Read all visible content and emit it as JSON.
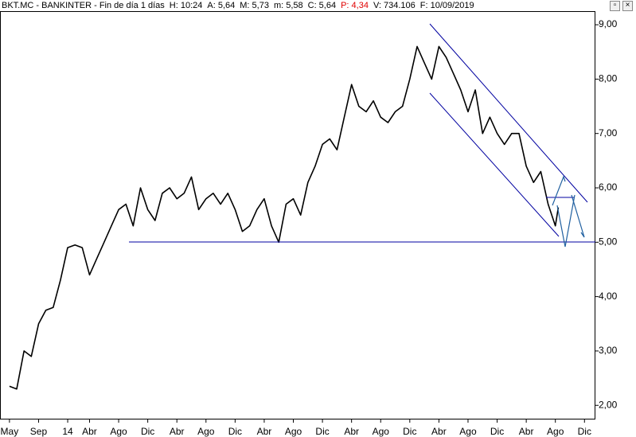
{
  "chart_data": {
    "type": "line",
    "info": [
      "BKT.MC - BANKINTER - Fin de día 1 días",
      "H: 10:24",
      "A: 5,64",
      "M: 5,73",
      "m: 5,58",
      "C: 5,64",
      "P: 4,34",
      "V: 734.106",
      "F: 10/09/2019"
    ],
    "color": "#000000",
    "x": [
      0,
      1,
      2,
      3,
      4,
      5,
      6,
      7,
      8,
      9,
      10,
      11,
      12,
      13,
      14,
      15,
      16,
      17,
      18,
      19,
      20,
      21,
      22,
      23,
      24,
      25,
      26,
      27,
      28,
      29,
      30,
      31,
      32,
      33,
      34,
      35,
      36,
      37,
      38,
      39,
      40,
      41,
      42,
      43,
      44,
      45,
      46,
      47,
      48,
      49,
      50,
      51,
      52,
      53,
      54,
      55,
      56,
      57,
      58,
      59,
      60,
      61,
      62,
      63,
      64,
      65,
      66,
      67,
      68,
      69,
      70,
      71,
      72,
      73,
      74,
      75,
      75.4
    ],
    "values": [
      2.35,
      2.3,
      3.0,
      2.9,
      3.5,
      3.75,
      3.8,
      4.3,
      4.9,
      4.95,
      4.9,
      4.4,
      4.7,
      5.0,
      5.3,
      5.6,
      5.7,
      5.3,
      6.0,
      5.6,
      5.4,
      5.9,
      6.0,
      5.8,
      5.9,
      6.2,
      5.6,
      5.8,
      5.9,
      5.7,
      5.9,
      5.6,
      5.2,
      5.3,
      5.6,
      5.8,
      5.3,
      5.0,
      5.7,
      5.8,
      5.5,
      6.1,
      6.4,
      6.8,
      6.9,
      6.7,
      7.3,
      7.9,
      7.5,
      7.4,
      7.6,
      7.3,
      7.2,
      7.4,
      7.5,
      8.0,
      8.6,
      8.3,
      8.0,
      8.6,
      8.4,
      8.1,
      7.8,
      7.4,
      7.8,
      7.0,
      7.3,
      7.0,
      6.8,
      7.0,
      7.0,
      6.4,
      6.1,
      6.3,
      5.7,
      5.3,
      5.64
    ],
    "xlim": [
      -1.3,
      80.5
    ],
    "xticks": [
      {
        "value": 0,
        "label": "May"
      },
      {
        "value": 4,
        "label": "Sep"
      },
      {
        "value": 8,
        "label": "14"
      },
      {
        "value": 11,
        "label": "Abr"
      },
      {
        "value": 15,
        "label": "Ago"
      },
      {
        "value": 19,
        "label": "Dic"
      },
      {
        "value": 23,
        "label": "Abr"
      },
      {
        "value": 27,
        "label": "Ago"
      },
      {
        "value": 31,
        "label": "Dic"
      },
      {
        "value": 35,
        "label": "Abr"
      },
      {
        "value": 39,
        "label": "Ago"
      },
      {
        "value": 43,
        "label": "Dic"
      },
      {
        "value": 47,
        "label": "Abr"
      },
      {
        "value": 51,
        "label": "Ago"
      },
      {
        "value": 55,
        "label": "Dic"
      },
      {
        "value": 59,
        "label": "Abr"
      },
      {
        "value": 63,
        "label": "Ago"
      },
      {
        "value": 67,
        "label": "Dic"
      },
      {
        "value": 71,
        "label": "Abr"
      },
      {
        "value": 75,
        "label": "Ago"
      },
      {
        "value": 79,
        "label": "Dic"
      }
    ],
    "ylim": [
      1.74,
      9.25
    ],
    "yticks": [
      {
        "value": 9,
        "label": "9,00"
      },
      {
        "value": 8,
        "label": "8,00"
      },
      {
        "value": 7,
        "label": "7,00"
      },
      {
        "value": 6,
        "label": "6,00"
      },
      {
        "value": 5,
        "label": "5,00"
      },
      {
        "value": 4,
        "label": "4,00"
      },
      {
        "value": 3,
        "label": "3,00"
      },
      {
        "value": 2,
        "label": "2,00"
      }
    ]
  }
}
